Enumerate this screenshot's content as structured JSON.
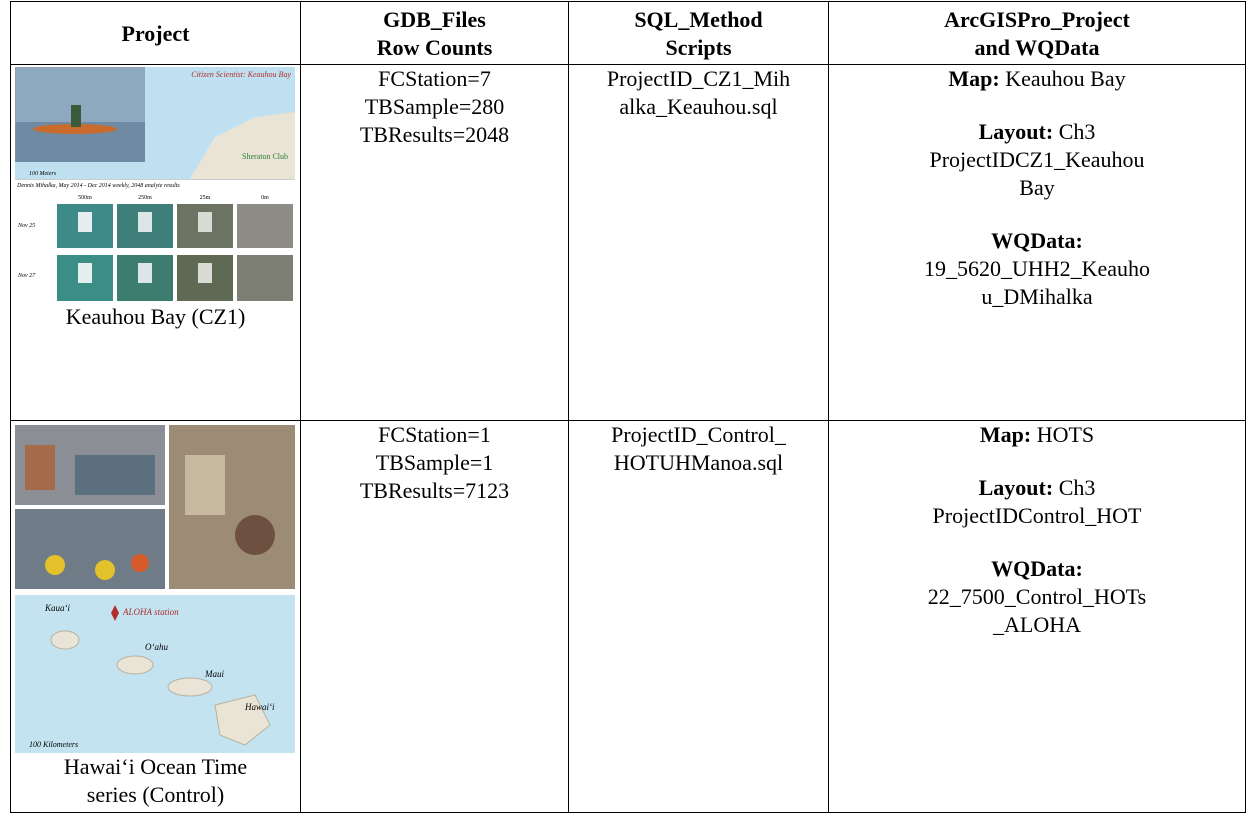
{
  "table": {
    "header": [
      [
        "Project"
      ],
      [
        "GDB_Files",
        "Row Counts"
      ],
      [
        "SQL_Method",
        "Scripts"
      ],
      [
        "ArcGISPro_Project",
        "and WQData"
      ]
    ],
    "rows": [
      {
        "project": {
          "image_labels": {
            "title": "Citizen Scientist: Keauhou Bay",
            "place": "Sheraton Club",
            "scale": "100 Meters",
            "caption": "Dennis Mihalka, May 2014 - Dec 2014 weekly, 2048 analyte results",
            "depths": [
              "500m",
              "250m",
              "25m",
              "0m"
            ],
            "dates": [
              "Nov 25",
              "Nov 27"
            ]
          },
          "caption": [
            "Keauhou Bay (CZ1)"
          ]
        },
        "gdb": [
          "FCStation=7",
          "TBSample=280",
          "TBResults=2048"
        ],
        "sql": [
          "ProjectID_CZ1_Mih",
          "alka_Keauhou.sql"
        ],
        "arcgis": {
          "map": {
            "label": "Map:",
            "text": "Keauhou Bay"
          },
          "layout": {
            "label": "Layout:",
            "text": "Ch3",
            "lines": [
              "ProjectIDCZ1_Keauhou",
              "Bay"
            ]
          },
          "wqdata": {
            "label": "WQData:",
            "lines": [
              "19_5620_UHH2_Keauho",
              "u_DMihalka"
            ]
          }
        }
      },
      {
        "project": {
          "image_labels": {
            "islands": [
              "Kaua‘i",
              "O‘ahu",
              "Maui",
              "Hawai‘i"
            ],
            "station": "ALOHA station",
            "scale": "100 Kilometers"
          },
          "caption": [
            "Hawai‘i Ocean Time",
            "series (Control)"
          ]
        },
        "gdb": [
          "FCStation=1",
          "TBSample=1",
          "TBResults=7123"
        ],
        "sql": [
          "ProjectID_Control_",
          "HOTUHManoa.sql"
        ],
        "arcgis": {
          "map": {
            "label": "Map:",
            "text": "HOTS"
          },
          "layout": {
            "label": "Layout:",
            "text": "Ch3",
            "lines": [
              "ProjectIDControl_HOT"
            ]
          },
          "wqdata": {
            "label": "WQData:",
            "lines": [
              "22_7500_Control_HOTs",
              "_ALOHA"
            ]
          }
        }
      }
    ]
  }
}
